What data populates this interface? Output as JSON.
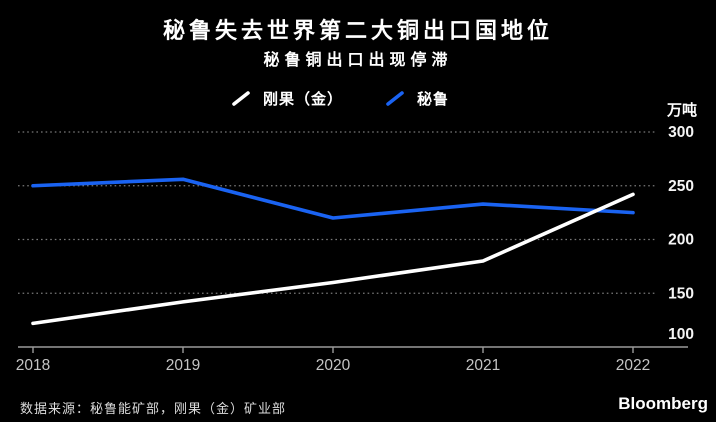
{
  "header": {
    "title": "秘鲁失去世界第二大铜出口国地位",
    "subtitle": "秘鲁铜出口出现停滞"
  },
  "legend": [
    {
      "label": "刚果（金）",
      "color": "#ffffff"
    },
    {
      "label": "秘鲁",
      "color": "#1a63f2"
    }
  ],
  "unit_label": "万吨",
  "chart_data": {
    "type": "line",
    "x": [
      2018,
      2019,
      2020,
      2021,
      2022
    ],
    "series": [
      {
        "name": "刚果（金）",
        "color": "#ffffff",
        "values": [
          122,
          142,
          160,
          180,
          242
        ]
      },
      {
        "name": "秘鲁",
        "color": "#1a63f2",
        "values": [
          250,
          256,
          220,
          233,
          225
        ]
      }
    ],
    "title": "秘鲁失去世界第二大铜出口国地位",
    "subtitle": "秘鲁铜出口出现停滞",
    "ylabel": "万吨",
    "ylim": [
      100,
      300
    ],
    "yticks": [
      100,
      150,
      200,
      250,
      300
    ],
    "grid": "horizontal-dotted",
    "legend_position": "top-center",
    "colors": {
      "background": "#000000",
      "gridline": "#787878",
      "axis": "#9a9a9a",
      "tick_label": "#c4c4c4",
      "value_label": "#f5f5f5"
    }
  },
  "footer": {
    "source": "数据来源：秘鲁能矿部，刚果（金）矿业部",
    "brand": "Bloomberg"
  }
}
